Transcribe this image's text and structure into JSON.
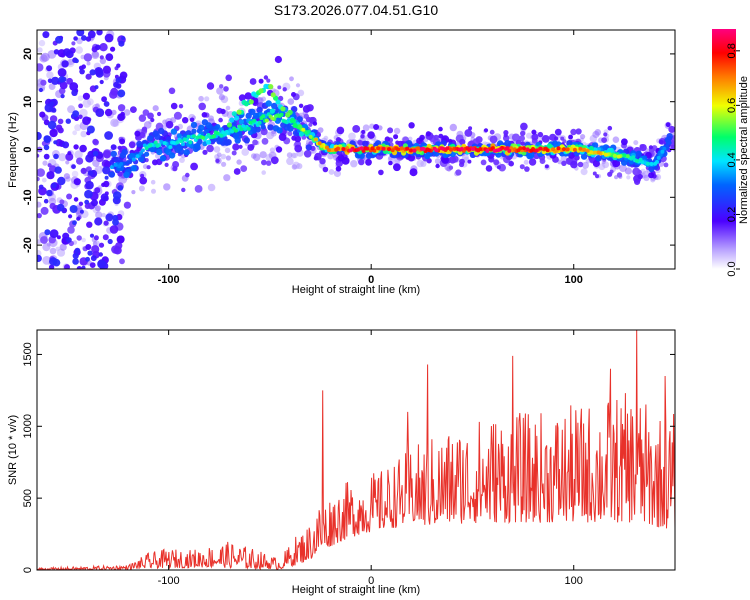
{
  "figure_title": "S173.2026.077.04.51.G10",
  "chart_data": [
    {
      "type": "heatmap",
      "title": "S173.2026.077.04.51.G10",
      "xlabel": "Height of straight line (km)",
      "ylabel": "Frequency (Hz)",
      "xlim": [
        -165,
        150
      ],
      "ylim": [
        -25,
        25
      ],
      "x_ticks": [
        -100,
        0,
        100
      ],
      "y_ticks": [
        -20,
        -10,
        0,
        10,
        20
      ],
      "colorbar": {
        "label": "Normalized spectral amplitude",
        "range": [
          0.0,
          0.88
        ],
        "ticks": [
          0.0,
          0.2,
          0.4,
          0.6,
          0.8
        ],
        "colormap": "rainbow (violet-blue-cyan-green-yellow-red-magenta)"
      },
      "ridge": {
        "description": "dominant frequency ridge vs height",
        "x": [
          -130,
          -120,
          -110,
          -100,
          -90,
          -80,
          -70,
          -60,
          -55,
          -50,
          -45,
          -40,
          -35,
          -30,
          -25,
          -20,
          -10,
          0,
          10,
          20,
          40,
          60,
          80,
          100,
          120,
          130,
          140,
          148
        ],
        "freq": [
          -3,
          -3,
          1,
          1,
          2,
          3,
          4,
          5,
          6,
          7,
          7,
          6,
          5,
          3,
          1,
          0,
          0,
          0,
          0,
          0,
          0,
          0,
          0,
          0,
          -1,
          -2,
          -3,
          2
        ],
        "amplitude": [
          0.35,
          0.3,
          0.45,
          0.4,
          0.45,
          0.5,
          0.45,
          0.5,
          0.5,
          0.55,
          0.5,
          0.45,
          0.6,
          0.55,
          0.7,
          0.75,
          0.85,
          0.8,
          0.8,
          0.85,
          0.85,
          0.85,
          0.8,
          0.75,
          0.6,
          0.45,
          0.4,
          0.3
        ]
      },
      "noise_band": {
        "x_range": [
          -165,
          -122
        ],
        "freq_range": [
          -25,
          25
        ],
        "amplitude": 0.15
      }
    },
    {
      "type": "line",
      "xlabel": "Height of straight line (km)",
      "ylabel": "SNR (10 * v/v)",
      "xlim": [
        -165,
        150
      ],
      "ylim": [
        0,
        1670
      ],
      "x_ticks": [
        -100,
        0,
        100
      ],
      "y_ticks": [
        0,
        500,
        1000,
        1500
      ],
      "color": "#e8312a",
      "envelope": {
        "x": [
          -165,
          -140,
          -120,
          -110,
          -100,
          -90,
          -80,
          -70,
          -60,
          -45,
          -38,
          -32,
          -28,
          -25,
          -22,
          -15,
          -5,
          5,
          15,
          20,
          25,
          40,
          60,
          80,
          100,
          115,
          130,
          140,
          150
        ],
        "low": [
          0,
          0,
          5,
          10,
          15,
          15,
          20,
          15,
          10,
          5,
          30,
          60,
          90,
          120,
          150,
          200,
          250,
          280,
          300,
          330,
          300,
          320,
          330,
          330,
          330,
          330,
          330,
          300,
          280
        ],
        "high": [
          15,
          25,
          35,
          120,
          150,
          140,
          170,
          200,
          160,
          80,
          230,
          300,
          400,
          500,
          500,
          600,
          650,
          700,
          800,
          850,
          900,
          1000,
          1100,
          1100,
          1150,
          1200,
          1250,
          1100,
          1100
        ]
      },
      "peaks": [
        {
          "x": -24,
          "y": 1250
        },
        {
          "x": 18,
          "y": 1100
        },
        {
          "x": 28,
          "y": 1430
        },
        {
          "x": 70,
          "y": 1490
        },
        {
          "x": 118,
          "y": 1400
        },
        {
          "x": 131,
          "y": 1670
        },
        {
          "x": 145,
          "y": 1350
        }
      ]
    }
  ]
}
